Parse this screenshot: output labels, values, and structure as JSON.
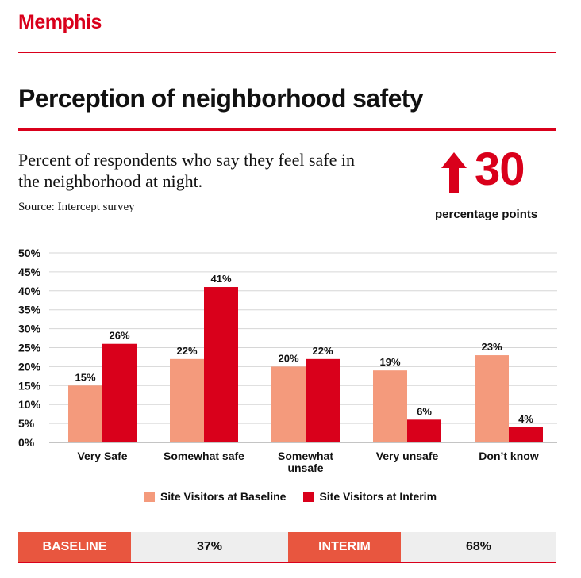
{
  "brand": "Memphis",
  "title": "Perception of neighborhood safety",
  "subtitle": "Percent of respondents who say they feel safe in the neighborhood at night.",
  "source": "Source: Intercept survey",
  "highlight": {
    "value": "30",
    "caption": "percentage points",
    "direction": "up"
  },
  "colors": {
    "baseline": "#f49a7c",
    "interim": "#d9001b",
    "accent": "#d9001b",
    "summary_label_bg": "#e8563f"
  },
  "chart_data": {
    "type": "bar",
    "categories": [
      "Very Safe",
      "Somewhat safe",
      "Somewhat\nunsafe",
      "Very unsafe",
      "Don’t know"
    ],
    "series": [
      {
        "name": "Site Visitors at Baseline",
        "values": [
          15,
          22,
          20,
          19,
          23
        ],
        "labels": [
          "15%",
          "22%",
          "20%",
          "19%",
          "23%"
        ],
        "color": "#f49a7c"
      },
      {
        "name": "Site Visitors at Interim",
        "values": [
          26,
          41,
          22,
          6,
          4
        ],
        "labels": [
          "26%",
          "41%",
          "22%",
          "6%",
          "4%"
        ],
        "color": "#d9001b"
      }
    ],
    "yticks": [
      "0%",
      "5%",
      "10%",
      "15%",
      "20%",
      "25%",
      "30%",
      "35%",
      "40%",
      "45%",
      "50%"
    ],
    "ylim": [
      0,
      50
    ],
    "grid": true,
    "legend": "bottom-center"
  },
  "summary": {
    "baseline_label": "BASELINE",
    "baseline_value": "37%",
    "interim_label": "INTERIM",
    "interim_value": "68%"
  }
}
